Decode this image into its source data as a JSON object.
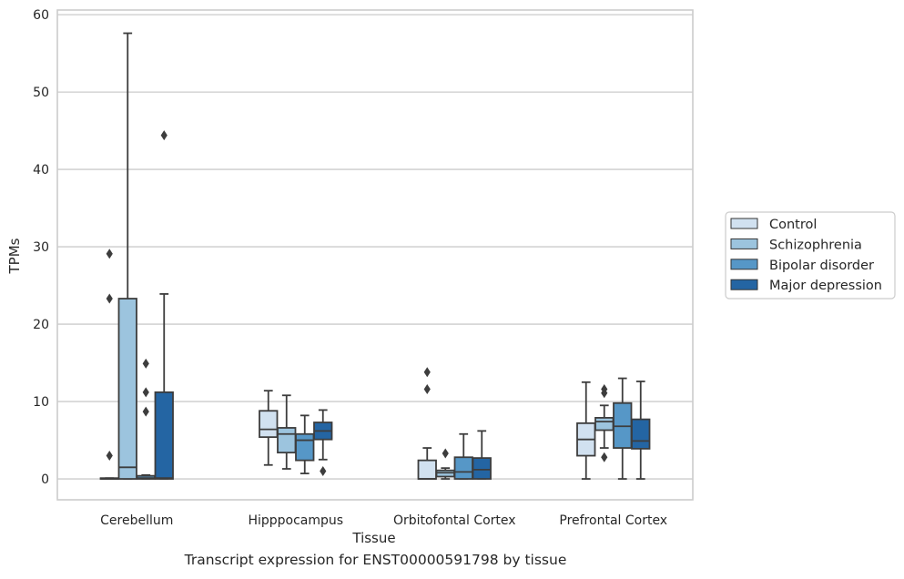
{
  "caption": "Transcript expression for ENST00000591798 by tissue",
  "chart_data": {
    "type": "box",
    "xlabel": "Tissue",
    "ylabel": "TPMs",
    "ylim": [
      -2.7,
      60.6
    ],
    "yticks": [
      0,
      10,
      20,
      30,
      40,
      50,
      60
    ],
    "grid": "horizontal",
    "legend_position": "right-center",
    "categories": [
      "Cerebellum",
      "Hipppocampus",
      "Orbitofontal Cortex",
      "Prefrontal Cortex"
    ],
    "series": [
      {
        "name": "Control",
        "color": "#d1e1f0",
        "boxes": [
          {
            "whislo": 0,
            "q1": 0,
            "med": 0,
            "q3": 0.1,
            "whishi": 0.1,
            "fliers": [
              3.0,
              23.3,
              29.1
            ]
          },
          {
            "whislo": 1.8,
            "q1": 5.4,
            "med": 6.4,
            "q3": 8.8,
            "whishi": 11.4,
            "fliers": []
          },
          {
            "whislo": 0,
            "q1": 0,
            "med": 0,
            "q3": 2.4,
            "whishi": 4.0,
            "fliers": [
              11.6,
              13.8
            ]
          },
          {
            "whislo": 0,
            "q1": 3.0,
            "med": 5.1,
            "q3": 7.2,
            "whishi": 12.5,
            "fliers": []
          }
        ]
      },
      {
        "name": "Schizophrenia",
        "color": "#9cc4de",
        "boxes": [
          {
            "whislo": 0,
            "q1": 0,
            "med": 1.5,
            "q3": 23.3,
            "whishi": 57.6,
            "fliers": []
          },
          {
            "whislo": 1.3,
            "q1": 3.4,
            "med": 5.8,
            "q3": 6.6,
            "whishi": 10.8,
            "fliers": []
          },
          {
            "whislo": 0,
            "q1": 0.3,
            "med": 0.8,
            "q3": 1.1,
            "whishi": 1.4,
            "fliers": [
              3.3
            ]
          },
          {
            "whislo": 4.0,
            "q1": 6.3,
            "med": 7.4,
            "q3": 7.9,
            "whishi": 9.5,
            "fliers": [
              2.8,
              11.1,
              11.6
            ]
          }
        ]
      },
      {
        "name": "Bipolar disorder",
        "color": "#5697c7",
        "boxes": [
          {
            "whislo": 0,
            "q1": 0,
            "med": 0.1,
            "q3": 0.4,
            "whishi": 0.5,
            "fliers": [
              8.7,
              11.2,
              14.9
            ]
          },
          {
            "whislo": 0.7,
            "q1": 2.4,
            "med": 5.0,
            "q3": 5.8,
            "whishi": 8.2,
            "fliers": []
          },
          {
            "whislo": 0,
            "q1": 0,
            "med": 0.9,
            "q3": 2.8,
            "whishi": 5.8,
            "fliers": []
          },
          {
            "whislo": 0,
            "q1": 4.0,
            "med": 6.8,
            "q3": 9.8,
            "whishi": 13.0,
            "fliers": []
          }
        ]
      },
      {
        "name": "Major depression",
        "color": "#2465a3",
        "boxes": [
          {
            "whislo": 0,
            "q1": 0,
            "med": 0.1,
            "q3": 11.2,
            "whishi": 23.9,
            "fliers": [
              44.4
            ]
          },
          {
            "whislo": 2.5,
            "q1": 5.1,
            "med": 6.2,
            "q3": 7.3,
            "whishi": 8.9,
            "fliers": [
              1.0
            ]
          },
          {
            "whislo": 0,
            "q1": 0,
            "med": 1.2,
            "q3": 2.7,
            "whishi": 6.2,
            "fliers": []
          },
          {
            "whislo": 0,
            "q1": 3.9,
            "med": 4.9,
            "q3": 7.7,
            "whishi": 12.6,
            "fliers": []
          }
        ]
      }
    ]
  }
}
